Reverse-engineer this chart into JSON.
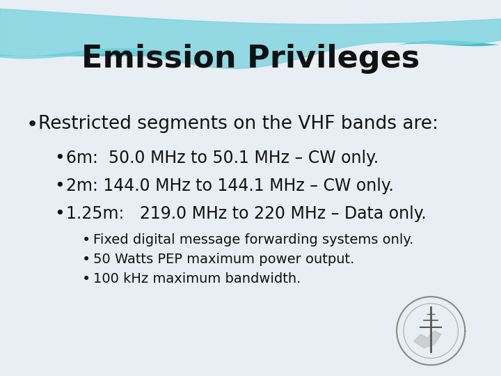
{
  "title": "Emission Privileges",
  "title_fontsize": 32,
  "title_fontweight": "bold",
  "title_color": "#111111",
  "background_color": "#e8eef4",
  "bullet1": "Restricted segments on the VHF bands are:",
  "bullet1_fontsize": 19,
  "sub_bullets": [
    "6m:  50.0 MHz to 50.1 MHz – CW only.",
    "2m: 144.0 MHz to 144.1 MHz – CW only.",
    "1.25m:   219.0 MHz to 220 MHz – Data only."
  ],
  "sub_bullet_fontsize": 17,
  "sub_sub_bullets": [
    "Fixed digital message forwarding systems only.",
    "50 Watts PEP maximum power output.",
    "100 kHz maximum bandwidth."
  ],
  "sub_sub_bullet_fontsize": 14,
  "text_color": "#111111",
  "wave_teal": "#4ec9d8",
  "wave_light": "#a0d8e4",
  "wave_white": "#dce8f0"
}
